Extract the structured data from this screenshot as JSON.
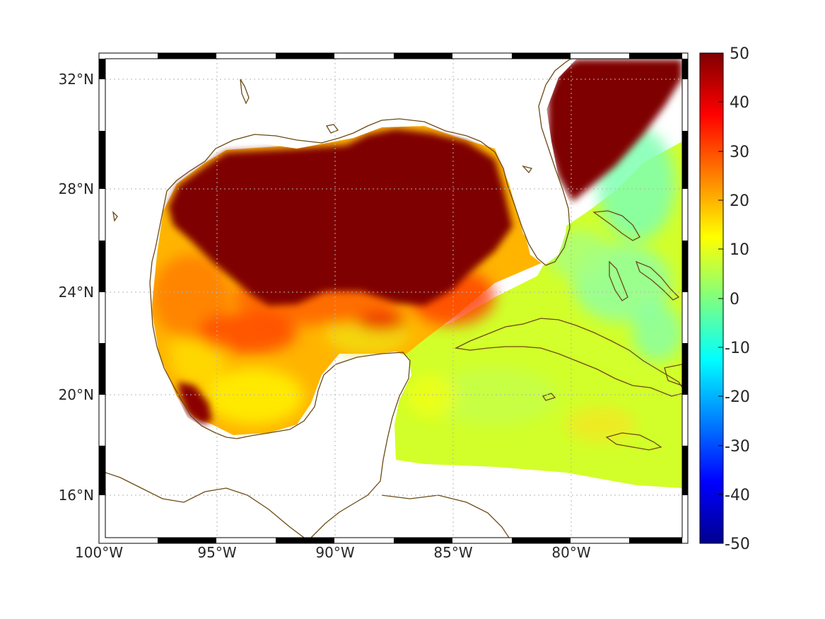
{
  "map": {
    "lon_labels": [
      "100°W",
      "95°W",
      "90°W",
      "85°W",
      "80°W"
    ],
    "lat_labels": [
      "32°N",
      "28°N",
      "24°N",
      "20°N",
      "16°N"
    ]
  },
  "colorbar": {
    "colormap": "jet",
    "ticks": [
      "50",
      "40",
      "30",
      "20",
      "10",
      "0",
      "-10",
      "-20",
      "-30",
      "-40",
      "-50"
    ],
    "range": [
      -50,
      50
    ]
  },
  "colors": {
    "coastline": "#6b4a14",
    "saturated_high": "#7f0000",
    "land": "#ffffff"
  }
}
